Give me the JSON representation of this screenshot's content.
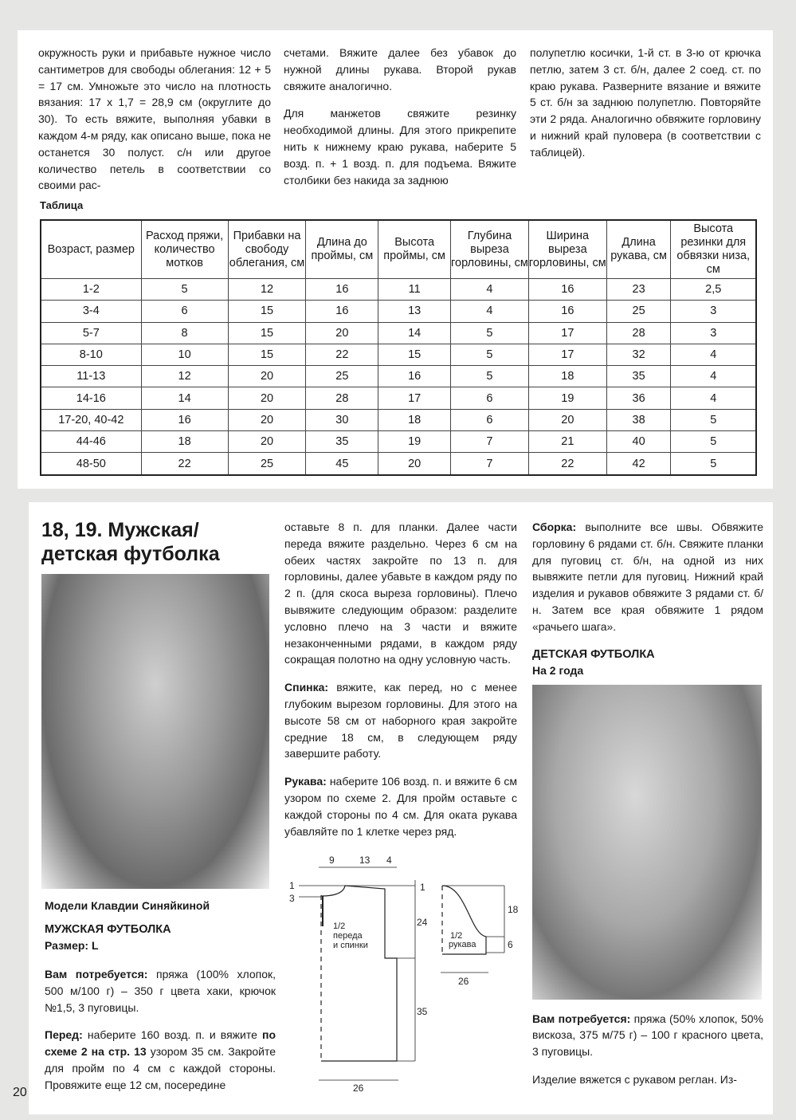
{
  "top": {
    "col1": "окружность руки и прибавьте нужное число сантиметров для свободы облегания: 12 + 5 = 17 см. Умножьте это число на плотность вязания: 17 х 1,7 = 28,9 см (округлите до 30). То есть вяжите, выполняя убавки в каждом 4-м ряду, как описано выше, пока не останется 30 полуст. с/н или другое количество петель в соответствии со своими рас-",
    "col2_p1": "счетами. Вяжите далее без убавок до нужной длины рукава. Второй рукав свяжите аналогично.",
    "col2_p2": "Для манжетов свяжите резинку необходимой длины. Для этого прикрепите нить к нижнему краю рукава, наберите 5 возд. п. + 1 возд. п. для подъема. Вяжите столбики без накида за заднюю",
    "col3": "полупетлю косички, 1-й ст. в 3-ю от крючка петлю, затем 3 ст. б/н, далее 2 соед. ст. по краю рукава. Разверните вязание и вяжите 5 ст. б/н за заднюю полупетлю. Повторяйте эти 2 ряда. Аналогично обвяжите горловину и нижний край пуловера (в соответствии с таблицей)."
  },
  "table": {
    "title": "Таблица",
    "headers": [
      "Возраст, размер",
      "Расход пряжи, количество мотков",
      "Прибавки на свободу облегания, см",
      "Длина до проймы, см",
      "Высота проймы, см",
      "Глубина выреза горловины, см",
      "Ширина выреза горловины, см",
      "Длина рукава, см",
      "Высота резинки для обвязки низа, см"
    ],
    "rows": [
      [
        "1-2",
        "5",
        "12",
        "16",
        "11",
        "4",
        "16",
        "23",
        "2,5"
      ],
      [
        "3-4",
        "6",
        "15",
        "16",
        "13",
        "4",
        "16",
        "25",
        "3"
      ],
      [
        "5-7",
        "8",
        "15",
        "20",
        "14",
        "5",
        "17",
        "28",
        "3"
      ],
      [
        "8-10",
        "10",
        "15",
        "22",
        "15",
        "5",
        "17",
        "32",
        "4"
      ],
      [
        "11-13",
        "12",
        "20",
        "25",
        "16",
        "5",
        "18",
        "35",
        "4"
      ],
      [
        "14-16",
        "14",
        "20",
        "28",
        "17",
        "6",
        "19",
        "36",
        "4"
      ],
      [
        "17-20, 40-42",
        "16",
        "20",
        "30",
        "18",
        "6",
        "20",
        "38",
        "5"
      ],
      [
        "44-46",
        "18",
        "20",
        "35",
        "19",
        "7",
        "21",
        "40",
        "5"
      ],
      [
        "48-50",
        "22",
        "25",
        "45",
        "20",
        "7",
        "22",
        "42",
        "5"
      ]
    ]
  },
  "article": {
    "title_line1": "18, 19. Мужская/",
    "title_line2": "детская футболка",
    "author": "Модели Клавдии Синяйкиной",
    "men_heading": "МУЖСКАЯ ФУТБОЛКА",
    "men_size": "Размер: L",
    "men_need_label": "Вам потребуется:",
    "men_need": " пряжа (100% хлопок, 500 м/100 г) – 350 г цвета хаки, крючок №1,5, 3 пуговицы.",
    "front_label": "Перед:",
    "front_a": " наберите 160 возд. п. и вяжите ",
    "front_b": "по схеме 2 на стр. 13",
    "front_c": " узором 35 см. Закройте для пройм по 4 см с каждой стороны. Провяжите еще 12 см, посередине",
    "col2_p1": "оставьте 8 п. для планки. Далее части переда вяжите раздельно. Через 6 см на обеих частях закройте по 13 п. для горловины, далее убавьте в каждом ряду по 2 п. (для скоса выреза горловины). Плечо вывяжите следующим образом: разделите условно плечо на 3 части и вяжите незаконченными рядами, в каждом ряду сокращая полотно на одну условную часть.",
    "back_label": "Спинка:",
    "back": " вяжите, как перед, но с менее глубоким вырезом горловины. Для этого на высоте 58 см от наборного края закройте средние 18 см, в следующем ряду завершите работу.",
    "sleeve_label": "Рукава:",
    "sleeve": " наберите 106 возд. п. и вяжите 6 см узором по схеме 2. Для пройм оставьте с каждой стороны по 4 см. Для оката рукава убавляйте по 1 клетке через ряд.",
    "assembly_label": "Сборка:",
    "assembly": " выполните все швы. Обвяжите горловину 6 рядами ст. б/н. Свяжите планки для пуговиц ст. б/н, на одной из них вывяжите петли для пуговиц. Нижний край изделия и рукавов обвяжите 3 рядами ст. б/н. Затем все края обвяжите 1 рядом «рачьего шага».",
    "kid_heading": "ДЕТСКАЯ ФУТБОЛКА",
    "kid_size": "На 2 года",
    "kid_need_label": "Вам потребуется:",
    "kid_need": " пряжа (50% хлопок, 50% вискоза, 375 м/75 г) – 100 г красного цвета, 3 пуговицы.",
    "kid_text": "Изделие вяжется с рукавом реглан. Из-"
  },
  "diagram": {
    "body_label_1": "1/2",
    "body_label_2": "переда",
    "body_label_3": "и спинки",
    "sleeve_label_1": "1/2",
    "sleeve_label_2": "рукава",
    "dims": {
      "neck_w": "9",
      "shoulder_w": "13",
      "armhole_w": "4",
      "neck_1": "1",
      "neck_3": "3",
      "shoulder_drop": "1",
      "armhole_h": "24",
      "body_h": "35",
      "body_w": "26",
      "cap_h": "18",
      "sleeve_h": "6",
      "sleeve_w": "26"
    }
  },
  "page_number": "20"
}
